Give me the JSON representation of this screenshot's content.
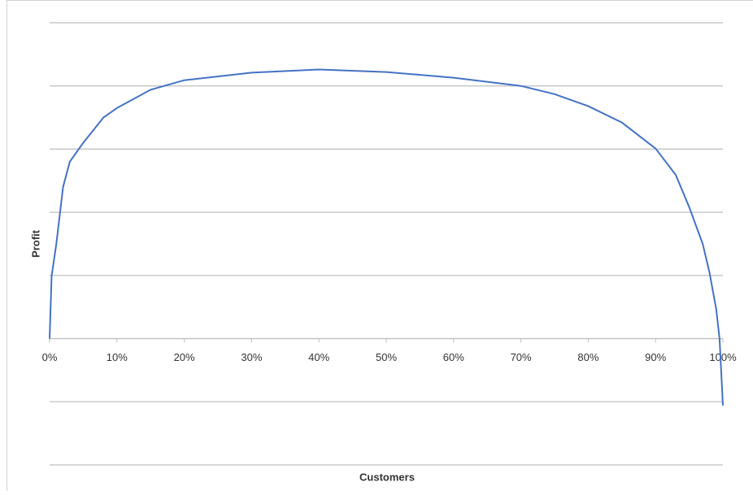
{
  "chart_data": {
    "type": "line",
    "x_label": "Customers",
    "y_label": "Profit",
    "xlim": [
      0,
      100
    ],
    "xticks": [
      {
        "value": 0,
        "label": "0%"
      },
      {
        "value": 10,
        "label": "10%"
      },
      {
        "value": 20,
        "label": "20%"
      },
      {
        "value": 30,
        "label": "30%"
      },
      {
        "value": 40,
        "label": "40%"
      },
      {
        "value": 50,
        "label": "50%"
      },
      {
        "value": 60,
        "label": "60%"
      },
      {
        "value": 70,
        "label": "70%"
      },
      {
        "value": 80,
        "label": "80%"
      },
      {
        "value": 90,
        "label": "90%"
      },
      {
        "value": 100,
        "label": "100%"
      }
    ],
    "ylim": [
      -2,
      5
    ],
    "yticks": [
      -2,
      -1,
      0,
      1,
      2,
      3,
      4,
      5
    ],
    "grid": true,
    "x": [
      0,
      0.3,
      1,
      2,
      3,
      5,
      8,
      10,
      15,
      20,
      30,
      40,
      50,
      60,
      70,
      75,
      80,
      85,
      90,
      93,
      95,
      97,
      98,
      99,
      99.5,
      100
    ],
    "series": [
      {
        "color": "#4472c4",
        "values": [
          0,
          0.99,
          1.5,
          2.4,
          2.8,
          3.1,
          3.5,
          3.65,
          3.94,
          4.09,
          4.21,
          4.26,
          4.22,
          4.13,
          4.0,
          3.87,
          3.68,
          3.42,
          3.01,
          2.59,
          2.08,
          1.5,
          1.05,
          0.47,
          0,
          -1.06
        ]
      }
    ]
  }
}
